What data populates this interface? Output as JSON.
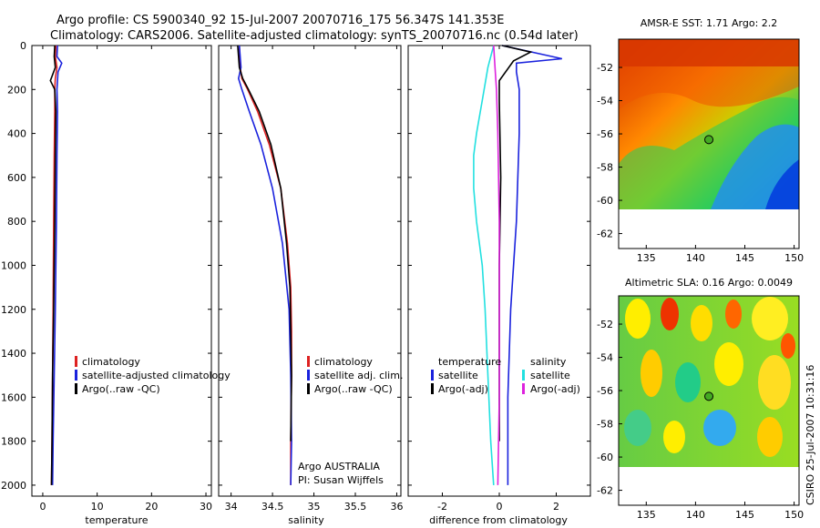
{
  "header": {
    "line1": "Argo profile: CS 5900340_92 15-Jul-2007 20070716_175 56.347S 141.353E",
    "line2": "Climatology: CARS2006. Satellite-adjusted climatology: synTS_20070716.nc (0.54d later)"
  },
  "colors": {
    "climatology": "#dd2222",
    "satellite": "#1a22dd",
    "argo": "#000000",
    "sal_satellite": "#22e0e0",
    "sal_argo": "#dd22dd"
  },
  "chart_data": [
    {
      "type": "line",
      "id": "temperature",
      "xlabel": "temperature",
      "ylabel": "",
      "xlim": [
        -2,
        31
      ],
      "ylim": [
        2050,
        0
      ],
      "xticks": [
        0,
        10,
        20,
        30
      ],
      "yticks": [
        0,
        200,
        400,
        600,
        800,
        1000,
        1200,
        1400,
        1600,
        1800,
        2000
      ],
      "legend": {
        "position": "bottom-right",
        "entries": [
          "climatology",
          "satellite-adjusted climatology",
          "Argo(..raw -QC)"
        ]
      },
      "series": [
        {
          "name": "climatology",
          "x": [
            2.4,
            2.3,
            2.6,
            2.3,
            2.2,
            2.2,
            2.1,
            2.0,
            1.9,
            1.8,
            1.7,
            1.6
          ],
          "y": [
            0,
            50,
            100,
            150,
            200,
            300,
            500,
            800,
            1200,
            1500,
            1800,
            2000
          ]
        },
        {
          "name": "satellite-adjusted climatology",
          "x": [
            2.7,
            2.6,
            3.5,
            2.8,
            2.6,
            2.7,
            2.6,
            2.5,
            2.3,
            2.1,
            1.9,
            1.8
          ],
          "y": [
            0,
            50,
            80,
            120,
            200,
            300,
            500,
            800,
            1200,
            1500,
            1800,
            2000
          ]
        },
        {
          "name": "Argo(..raw -QC)",
          "x": [
            2.2,
            2.1,
            2.3,
            1.4,
            2.2,
            2.4,
            2.3,
            2.2,
            2.0,
            1.8,
            1.7,
            1.6
          ],
          "y": [
            0,
            50,
            100,
            160,
            200,
            300,
            500,
            800,
            1200,
            1500,
            1800,
            2000
          ]
        }
      ]
    },
    {
      "type": "line",
      "id": "salinity",
      "xlabel": "salinity",
      "xlim": [
        33.85,
        36.05
      ],
      "ylim": [
        2050,
        0
      ],
      "xticks": [
        34,
        34.5,
        35,
        35.5,
        36
      ],
      "legend": {
        "position": "bottom-right",
        "entries": [
          "climatology",
          "satellite adj. clim.",
          "Argo(..raw -QC)"
        ]
      },
      "annotation": [
        "Argo AUSTRALIA",
        "PI: Susan Wijffels"
      ],
      "series": [
        {
          "name": "climatology",
          "x": [
            34.1,
            34.11,
            34.13,
            34.2,
            34.32,
            34.46,
            34.6,
            34.68,
            34.72,
            34.73,
            34.73,
            34.72,
            34.72
          ],
          "y": [
            0,
            100,
            150,
            200,
            300,
            450,
            650,
            900,
            1100,
            1300,
            1500,
            1800,
            2000
          ]
        },
        {
          "name": "satellite adj. clim.",
          "x": [
            34.1,
            34.12,
            34.09,
            34.13,
            34.22,
            34.36,
            34.5,
            34.62,
            34.7,
            34.72,
            34.73,
            34.72
          ],
          "y": [
            0,
            100,
            150,
            200,
            300,
            450,
            650,
            900,
            1200,
            1500,
            1800,
            2000
          ]
        },
        {
          "name": "Argo(..raw -QC)",
          "x": [
            34.08,
            34.1,
            34.14,
            34.21,
            34.34,
            34.48,
            34.6,
            34.67,
            34.71,
            34.72,
            34.73,
            34.72
          ],
          "y": [
            0,
            100,
            150,
            200,
            300,
            450,
            650,
            900,
            1100,
            1300,
            1500,
            1800
          ]
        }
      ]
    },
    {
      "type": "line",
      "id": "difference",
      "xlabel": "difference from climatology",
      "xlim": [
        -3.2,
        3.2
      ],
      "ylim": [
        2050,
        0
      ],
      "xticks": [
        -2,
        0,
        2
      ],
      "legend": {
        "position": "bottom",
        "entries": [
          "temperature",
          "satellite",
          "Argo(-adj)",
          "salinity",
          "satellite",
          "Argo(-adj)"
        ]
      },
      "series": [
        {
          "name": "temperature satellite",
          "x": [
            0.1,
            2.2,
            0.6,
            0.6,
            0.7,
            0.7,
            0.6,
            0.4,
            0.3,
            0.3
          ],
          "y": [
            0,
            60,
            80,
            120,
            200,
            400,
            800,
            1200,
            1600,
            2000
          ]
        },
        {
          "name": "temperature Argo(-adj)",
          "x": [
            0.1,
            1.1,
            0.5,
            0.0,
            0.0,
            0.05,
            0.0,
            0.0,
            0.0
          ],
          "y": [
            0,
            30,
            70,
            160,
            250,
            600,
            1000,
            1500,
            1800
          ]
        },
        {
          "name": "salinity satellite",
          "x": [
            -0.2,
            -0.4,
            -0.6,
            -0.8,
            -0.9,
            -0.9,
            -0.8,
            -0.6,
            -0.5,
            -0.4,
            -0.3,
            -0.2
          ],
          "y": [
            0,
            100,
            250,
            400,
            500,
            650,
            800,
            1000,
            1200,
            1500,
            1800,
            2000
          ]
        },
        {
          "name": "salinity Argo(-adj)",
          "x": [
            -0.2,
            -0.15,
            -0.1,
            -0.05,
            0.0,
            0.0,
            0.0,
            -0.05
          ],
          "y": [
            0,
            100,
            200,
            400,
            800,
            1200,
            1600,
            2000
          ]
        }
      ]
    },
    {
      "type": "heatmap",
      "id": "sst-map",
      "title": "AMSR-E SST: 1.71  Argo: 2.2",
      "xlim": [
        132.2,
        150.5
      ],
      "ylim": [
        -62.9,
        -50.3
      ],
      "xticks": [
        135,
        140,
        145,
        150
      ],
      "yticks": [
        -52,
        -54,
        -56,
        -58,
        -60,
        -62
      ],
      "marker": {
        "lon": 141.353,
        "lat": -56.347,
        "color": "#44aa22"
      },
      "data_extent_lat": [
        -60.1,
        -50.3
      ]
    },
    {
      "type": "heatmap",
      "id": "sla-map",
      "title": "Altimetric SLA: 0.16  Argo: 0.0049",
      "xlim": [
        132.2,
        150.5
      ],
      "ylim": [
        -62.9,
        -50.3
      ],
      "xticks": [
        135,
        140,
        145,
        150
      ],
      "yticks": [
        -52,
        -54,
        -56,
        -58,
        -60,
        -62
      ],
      "marker": {
        "lon": 141.353,
        "lat": -56.347,
        "color": "#44aa22"
      },
      "data_extent_lat": [
        -60.1,
        -50.3
      ]
    }
  ],
  "footer": {
    "stamp": "CSIRO 25-Jul-2007 10:31:16"
  }
}
